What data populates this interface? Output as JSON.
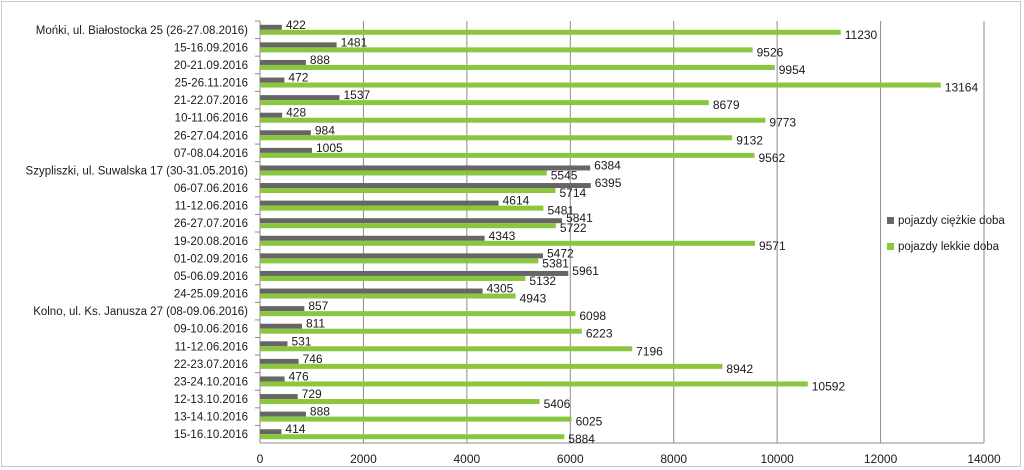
{
  "chart_data": {
    "type": "bar",
    "orientation": "horizontal",
    "categories": [
      "Mońki, ul. Białostocka 25 (26-27.08.2016)",
      "15-16.09.2016",
      "20-21.09.2016",
      "25-26.11.2016",
      "21-22.07.2016",
      "10-11.06.2016",
      "26-27.04.2016",
      "07-08.04.2016",
      "Szypliszki, ul. Suwalska 17 (30-31.05.2016)",
      "06-07.06.2016",
      "11-12.06.2016",
      "26-27.07.2016",
      "19-20.08.2016",
      "01-02.09.2016",
      "05-06.09.2016",
      "24-25.09.2016",
      "Kolno, ul. Ks. Janusza 27 (08-09.06.2016)",
      "09-10.06.2016",
      "11-12.06.2016",
      "22-23.07.2016",
      "23-24.10.2016",
      "12-13.10.2016",
      "13-14.10.2016",
      "15-16.10.2016"
    ],
    "series": [
      {
        "name": "pojazdy ciężkie doba",
        "color": "#666666",
        "values": [
          422,
          1481,
          888,
          472,
          1537,
          428,
          984,
          1005,
          6384,
          6395,
          4614,
          5841,
          4343,
          5472,
          5961,
          4305,
          857,
          811,
          531,
          746,
          476,
          729,
          888,
          414
        ]
      },
      {
        "name": "pojazdy lekkie doba",
        "color": "#8cc63e",
        "values": [
          11230,
          9526,
          9954,
          13164,
          8679,
          9773,
          9132,
          9562,
          5545,
          5714,
          5481,
          5722,
          9571,
          5381,
          5132,
          4943,
          6098,
          6223,
          7196,
          8942,
          10592,
          5406,
          6025,
          5884
        ]
      }
    ],
    "xlim": [
      0,
      14000
    ],
    "xticks": [
      "0",
      "2000",
      "4000",
      "6000",
      "8000",
      "10000",
      "12000",
      "14000"
    ],
    "grid": true,
    "legend_position": "right",
    "title": "",
    "xlabel": "",
    "ylabel": ""
  }
}
